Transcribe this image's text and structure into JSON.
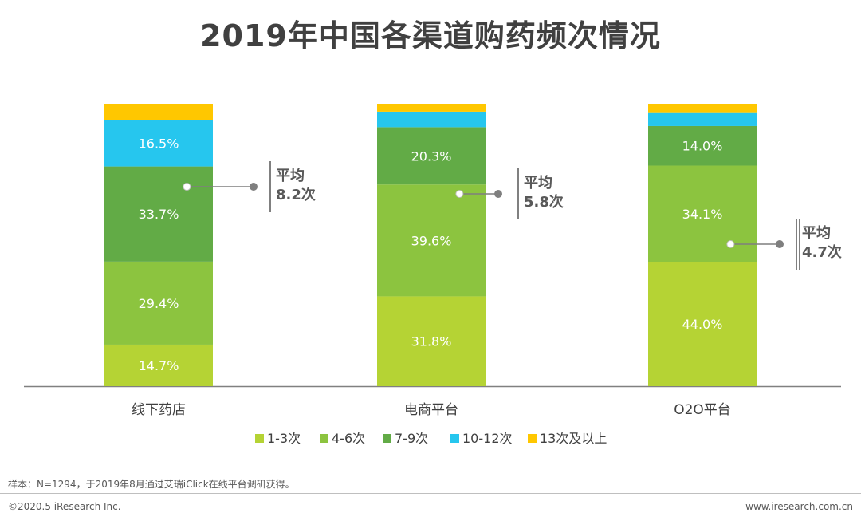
{
  "title": "2019年中国各渠道购药频次情况",
  "colors": {
    "1-3次": "#b5d334",
    "4-6次": "#8cc43f",
    "7-9次": "#62ab46",
    "10-12次": "#26c6ee",
    "13次及以上": "#ffc700",
    "axis": "#808080",
    "label_text": "#ffffff",
    "avg_text": "#595959"
  },
  "chart_data": {
    "type": "bar",
    "stacked": true,
    "orientation": "vertical",
    "title": "2019年中国各渠道购药频次情况",
    "unit": "%",
    "categories": [
      "线下药店",
      "电商平台",
      "O2O平台"
    ],
    "series": [
      {
        "name": "1-3次",
        "values": [
          14.7,
          31.8,
          44.0
        ],
        "labels": [
          "14.7%",
          "31.8%",
          "44.0%"
        ]
      },
      {
        "name": "4-6次",
        "values": [
          29.4,
          39.6,
          34.1
        ],
        "labels": [
          "29.4%",
          "39.6%",
          "34.1%"
        ]
      },
      {
        "name": "7-9次",
        "values": [
          33.7,
          20.3,
          14.0
        ],
        "labels": [
          "33.7%",
          "20.3%",
          "14.0%"
        ]
      },
      {
        "name": "10-12次",
        "values": [
          16.5,
          5.5,
          4.6
        ],
        "labels": [
          "16.5%",
          "",
          ""
        ]
      },
      {
        "name": "13次及以上",
        "values": [
          5.7,
          2.8,
          3.3
        ],
        "labels": [
          "",
          "",
          ""
        ]
      }
    ],
    "averages": [
      {
        "category": "线下药店",
        "label": "平均",
        "value": "8.2次"
      },
      {
        "category": "电商平台",
        "label": "平均",
        "value": "5.8次"
      },
      {
        "category": "O2O平台",
        "label": "平均",
        "value": "4.7次"
      }
    ],
    "legend_position": "bottom"
  },
  "source_note": "样本：N=1294，于2019年8月通过艾瑞iClick在线平台调研获得。",
  "footer": {
    "copyright": "©2020.5 iResearch Inc.",
    "website": "www.iresearch.com.cn"
  }
}
